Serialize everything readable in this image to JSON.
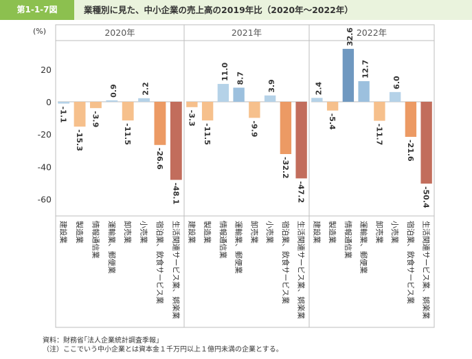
{
  "figure": {
    "label": "第1-1-7図",
    "title": "業種別に見た、中小企業の売上高の2019年比（2020年～2022年）"
  },
  "chart_data": {
    "type": "bar",
    "ylabel": "(%)",
    "ylim": [
      -70,
      40
    ],
    "yticks": [
      20,
      0,
      -20,
      -40,
      -60
    ],
    "grid": false,
    "categories": [
      "建設業",
      "製造業",
      "情報通信業",
      "運輸業、郵便業",
      "卸売業",
      "小売業",
      "宿泊業、飲食サービス業",
      "生活関連サービス業、娯楽業"
    ],
    "panels": [
      {
        "name": "2020年",
        "values": [
          -1.1,
          -15.3,
          -3.9,
          0.9,
          -11.5,
          2.2,
          -26.6,
          -48.1
        ]
      },
      {
        "name": "2021年",
        "values": [
          -3.3,
          -11.5,
          11.0,
          8.7,
          -9.9,
          3.9,
          -32.2,
          -47.2
        ]
      },
      {
        "name": "2022年",
        "values": [
          2.4,
          -5.4,
          32.6,
          12.7,
          -11.7,
          6.0,
          -21.6,
          -50.4
        ]
      }
    ],
    "value_labels": [
      [
        "-1.1",
        "-15.3",
        "-3.9",
        "0.9",
        "-11.5",
        "2.2",
        "-26.6",
        "-48.1"
      ],
      [
        "-3.3",
        "-11.5",
        "11.0",
        "8.7",
        "-9.9",
        "3.9",
        "-32.2",
        "-47.2"
      ],
      [
        "2.4",
        "-5.4",
        "32.6",
        "12.7",
        "-11.7",
        "6.0",
        "-21.6",
        "-50.4"
      ]
    ],
    "colors": {
      "light_blue": "#b5d2e8",
      "blue": "#6f98c0",
      "mid_blue": "#9cc0de",
      "light_orange": "#f6c08c",
      "orange": "#ec9a64",
      "brown": "#c26d5c",
      "zero_line": "#c7c7c7"
    }
  },
  "notes": {
    "source": "資料：財務省｢法人企業統計調査季報｣",
    "note": "（注）ここでいう中小企業とは資本金１千万円以上１億円未満の企業とする。"
  }
}
